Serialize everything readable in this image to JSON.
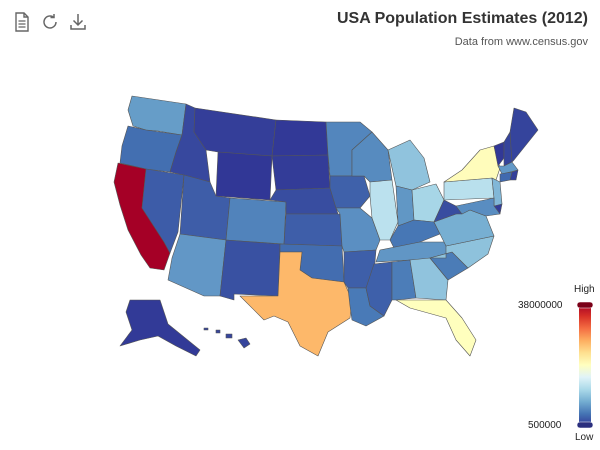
{
  "title": "USA Population Estimates (2012)",
  "subtitle": "Data from www.census.gov",
  "toolbar": [
    {
      "name": "document-icon",
      "label": "Data view"
    },
    {
      "name": "refresh-icon",
      "label": "Restore"
    },
    {
      "name": "download-icon",
      "label": "Save as image"
    }
  ],
  "legend": {
    "high_label": "High",
    "low_label": "Low",
    "max": "38000000",
    "min": "500000",
    "colors": [
      "#313695",
      "#4575b4",
      "#74add1",
      "#abd9e9",
      "#e0f3f8",
      "#ffffbf",
      "#fee090",
      "#fdae61",
      "#f46d43",
      "#d73027",
      "#a50026"
    ]
  },
  "map_data": {
    "metric": "population",
    "min": 500000,
    "max": 38000000,
    "states": [
      {
        "name": "Washington",
        "code": "WA",
        "value": 6900000
      },
      {
        "name": "Oregon",
        "code": "OR",
        "value": 3900000
      },
      {
        "name": "California",
        "code": "CA",
        "value": 38000000
      },
      {
        "name": "Nevada",
        "code": "NV",
        "value": 2750000
      },
      {
        "name": "Idaho",
        "code": "ID",
        "value": 1600000
      },
      {
        "name": "Montana",
        "code": "MT",
        "value": 1000000
      },
      {
        "name": "Wyoming",
        "code": "WY",
        "value": 580000
      },
      {
        "name": "Utah",
        "code": "UT",
        "value": 2850000
      },
      {
        "name": "Arizona",
        "code": "AZ",
        "value": 6550000
      },
      {
        "name": "Colorado",
        "code": "CO",
        "value": 5200000
      },
      {
        "name": "New Mexico",
        "code": "NM",
        "value": 2080000
      },
      {
        "name": "North Dakota",
        "code": "ND",
        "value": 700000
      },
      {
        "name": "South Dakota",
        "code": "SD",
        "value": 830000
      },
      {
        "name": "Nebraska",
        "code": "NE",
        "value": 1850000
      },
      {
        "name": "Kansas",
        "code": "KS",
        "value": 2880000
      },
      {
        "name": "Oklahoma",
        "code": "OK",
        "value": 3800000
      },
      {
        "name": "Texas",
        "code": "TX",
        "value": 26000000
      },
      {
        "name": "Minnesota",
        "code": "MN",
        "value": 5400000
      },
      {
        "name": "Iowa",
        "code": "IA",
        "value": 3070000
      },
      {
        "name": "Missouri",
        "code": "MO",
        "value": 6000000
      },
      {
        "name": "Arkansas",
        "code": "AR",
        "value": 2950000
      },
      {
        "name": "Louisiana",
        "code": "LA",
        "value": 4600000
      },
      {
        "name": "Wisconsin",
        "code": "WI",
        "value": 5700000
      },
      {
        "name": "Illinois",
        "code": "IL",
        "value": 12900000
      },
      {
        "name": "Michigan",
        "code": "MI",
        "value": 9900000
      },
      {
        "name": "Indiana",
        "code": "IN",
        "value": 6500000
      },
      {
        "name": "Ohio",
        "code": "OH",
        "value": 11500000
      },
      {
        "name": "Kentucky",
        "code": "KY",
        "value": 4400000
      },
      {
        "name": "Tennessee",
        "code": "TN",
        "value": 6450000
      },
      {
        "name": "Mississippi",
        "code": "MS",
        "value": 2980000
      },
      {
        "name": "Alabama",
        "code": "AL",
        "value": 4800000
      },
      {
        "name": "Georgia",
        "code": "GA",
        "value": 9900000
      },
      {
        "name": "Florida",
        "code": "FL",
        "value": 19300000
      },
      {
        "name": "South Carolina",
        "code": "SC",
        "value": 4700000
      },
      {
        "name": "North Carolina",
        "code": "NC",
        "value": 9750000
      },
      {
        "name": "Virginia",
        "code": "VA",
        "value": 8200000
      },
      {
        "name": "West Virginia",
        "code": "WV",
        "value": 1850000
      },
      {
        "name": "Pennsylvania",
        "code": "PA",
        "value": 12760000
      },
      {
        "name": "New York",
        "code": "NY",
        "value": 19570000
      },
      {
        "name": "Vermont",
        "code": "VT",
        "value": 626000
      },
      {
        "name": "New Hampshire",
        "code": "NH",
        "value": 1320000
      },
      {
        "name": "Maine",
        "code": "ME",
        "value": 1330000
      },
      {
        "name": "Massachusetts",
        "code": "MA",
        "value": 6650000
      },
      {
        "name": "Rhode Island",
        "code": "RI",
        "value": 1050000
      },
      {
        "name": "Connecticut",
        "code": "CT",
        "value": 3590000
      },
      {
        "name": "New Jersey",
        "code": "NJ",
        "value": 8860000
      },
      {
        "name": "Delaware",
        "code": "DE",
        "value": 917000
      },
      {
        "name": "Maryland",
        "code": "MD",
        "value": 5880000
      },
      {
        "name": "Alaska",
        "code": "AK",
        "value": 731000
      },
      {
        "name": "Hawaii",
        "code": "HI",
        "value": 1390000
      }
    ]
  }
}
